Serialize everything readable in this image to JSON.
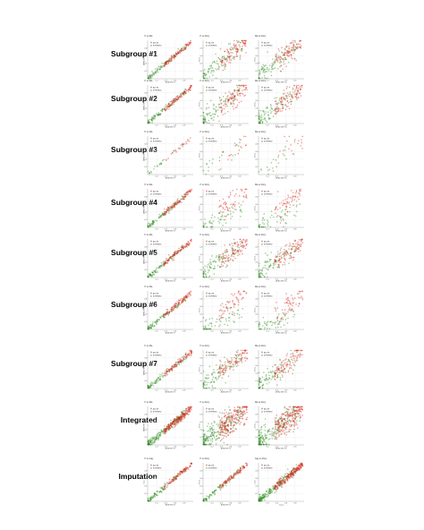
{
  "legend": {
    "alive": "ALIVE",
    "expired": "EXPIRED"
  },
  "colors": {
    "alive": "#d42a1c",
    "expired": "#2e8b1e",
    "grid": "#e6e6e6",
    "axis": "#888888"
  },
  "rows": [
    {
      "label": "Subgroup #1",
      "panels": [
        {
          "title": "Yt vs Ma",
          "xlabel": "APACHE IV",
          "ylabel": "APACHE IVa"
        },
        {
          "title": "Yt vs Dory",
          "xlabel": "APACHE IV",
          "ylabel": "Dory"
        },
        {
          "title": "Ma vs Dory",
          "xlabel": "APACHE IVa",
          "ylabel": "Dory"
        }
      ]
    },
    {
      "label": "Subgroup #2",
      "panels": [
        {
          "title": "Yt vs Ma",
          "xlabel": "APACHE IV",
          "ylabel": "APACHE IVa"
        },
        {
          "title": "Yt vs Dory",
          "xlabel": "APACHE IV",
          "ylabel": "Dory"
        },
        {
          "title": "Ma vs Dory",
          "xlabel": "APACHE IVa",
          "ylabel": "Dory"
        }
      ]
    },
    {
      "label": "Subgroup #3",
      "panels": [
        {
          "title": "Yt vs Ma",
          "xlabel": "APACHE IV",
          "ylabel": "APACHE IVa"
        },
        {
          "title": "Yt vs Dory",
          "xlabel": "APACHE IV",
          "ylabel": "Dory"
        },
        {
          "title": "Ma vs Dory",
          "xlabel": "APACHE IVa",
          "ylabel": "Dory"
        }
      ]
    },
    {
      "label": "Subgroup #4",
      "panels": [
        {
          "title": "Yt vs Ma",
          "xlabel": "APACHE IV",
          "ylabel": "APACHE IVa"
        },
        {
          "title": "Yt vs Dory",
          "xlabel": "APACHE IV",
          "ylabel": "Dory"
        },
        {
          "title": "Ma vs Dory",
          "xlabel": "APACHE IVa",
          "ylabel": "Dory"
        }
      ]
    },
    {
      "label": "Subgroup #5",
      "panels": [
        {
          "title": "Yt vs Ma",
          "xlabel": "APACHE IV",
          "ylabel": "APACHE IVa"
        },
        {
          "title": "Yt vs Dory",
          "xlabel": "APACHE IV",
          "ylabel": "Dory"
        },
        {
          "title": "Ma vs Dory",
          "xlabel": "APACHE IVa",
          "ylabel": "Dory"
        }
      ]
    },
    {
      "label": "Subgroup #6",
      "panels": [
        {
          "title": "Yt vs Ma",
          "xlabel": "APACHE IV",
          "ylabel": "APACHE IVa"
        },
        {
          "title": "Yt vs Dory",
          "xlabel": "APACHE IV",
          "ylabel": "Dory"
        },
        {
          "title": "Ma vs Dory",
          "xlabel": "APACHE IVa",
          "ylabel": "Dory"
        }
      ]
    },
    {
      "label": "Subgroup #7",
      "panels": [
        {
          "title": "Yt vs Ma",
          "xlabel": "APACHE IV",
          "ylabel": "APACHE IVa"
        },
        {
          "title": "Yt vs Dory",
          "xlabel": "APACHE IV",
          "ylabel": "Dory"
        },
        {
          "title": "Ma vs Dory",
          "xlabel": "APACHE IVa",
          "ylabel": "Dory"
        }
      ]
    },
    {
      "label": "Integrated",
      "panels": [
        {
          "title": "Yt vs Ma",
          "xlabel": "APACHE IV",
          "ylabel": "APACHE IVa"
        },
        {
          "title": "Yt vs Dory",
          "xlabel": "APACHE IV",
          "ylabel": "Dory"
        },
        {
          "title": "Ma vs Dory",
          "xlabel": "APACHE IVa",
          "ylabel": "Dory"
        }
      ]
    },
    {
      "label": "Imputation",
      "panels": [
        {
          "title": "Yt vs Isay",
          "xlabel": "APACHE IV",
          "ylabel": "Isay"
        },
        {
          "title": "Yt vs Dory",
          "xlabel": "APACHE IV",
          "ylabel": "Dory"
        },
        {
          "title": "Isay vs Dory",
          "xlabel": "Dory",
          "ylabel": "Isay"
        }
      ]
    }
  ],
  "chart_data": {
    "type": "scatter",
    "layout": "grid of 9 rows x 3 panels",
    "axis_range": {
      "xlim": [
        0,
        1
      ],
      "ylim": [
        0,
        1
      ]
    },
    "x_ticks": [
      "0.2",
      "0.4",
      "0.6",
      "0.8"
    ],
    "y_ticks": [
      "0.2",
      "0.4",
      "0.6",
      "0.8"
    ],
    "grid": true,
    "legend_position": "top-left",
    "series": [
      {
        "name": "ALIVE",
        "color": "#d42a1c",
        "pattern": "concentrated at high values"
      },
      {
        "name": "EXPIRED",
        "color": "#2e8b1e",
        "pattern": "concentrated at low values"
      }
    ],
    "panel_patterns": [
      [
        "diagonal",
        "spread",
        "spread"
      ],
      [
        "diagonal",
        "spread",
        "spread"
      ],
      [
        "sparse-diagonal",
        "sparse",
        "sparse"
      ],
      [
        "diagonal",
        "spread-low",
        "spread-low"
      ],
      [
        "diagonal",
        "spread",
        "spread"
      ],
      [
        "diagonal",
        "spread-low",
        "spread-low"
      ],
      [
        "diagonal",
        "spread",
        "spread"
      ],
      [
        "dense-diagonal",
        "dense",
        "dense"
      ],
      [
        "diagonal",
        "diagonal",
        "dense-diagonal"
      ]
    ]
  }
}
